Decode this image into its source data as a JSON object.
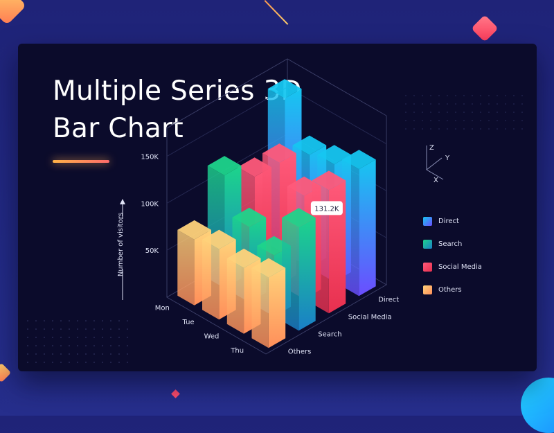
{
  "page": {
    "title_line1": "Multiple Series 3D",
    "title_line2": "Bar Chart"
  },
  "chart_data": {
    "type": "bar",
    "title": "Multiple Series 3D Bar Chart",
    "ylabel": "Number of visitors",
    "ylim": [
      0,
      150000
    ],
    "y_ticks": [
      "50K",
      "100K",
      "150K"
    ],
    "categories": [
      "Mon",
      "Tue",
      "Wed",
      "Thu"
    ],
    "series": [
      {
        "name": "Others",
        "values": [
          70000,
          75000,
          70000,
          75000
        ],
        "color_top": "#ffd27a",
        "color_bottom": "#ff8f5a"
      },
      {
        "name": "Search",
        "values": [
          120000,
          80000,
          65000,
          110000
        ],
        "color_top": "#1dd48b",
        "color_bottom": "#1a7fc7"
      },
      {
        "name": "Social Media",
        "values": [
          100000,
          130000,
          110000,
          131200
        ],
        "color_top": "#ff5a7a",
        "color_bottom": "#e8304f"
      },
      {
        "name": "Direct",
        "values": [
          165000,
          120000,
          125000,
          135000
        ],
        "color_top": "#16c6f0",
        "color_bottom": "#6b4dff"
      }
    ],
    "depth_labels": [
      "Others",
      "Search",
      "Social Media",
      "Direct"
    ],
    "tooltip": {
      "text": "131.2K",
      "series": "Social Media",
      "category": "Thu"
    },
    "axis_indicator": {
      "x": "X",
      "y": "Y",
      "z": "Z"
    },
    "legend": [
      {
        "name": "Direct",
        "color": "#3aa0ff"
      },
      {
        "name": "Search",
        "color": "#1ec8a0"
      },
      {
        "name": "Social Media",
        "color": "#ff4d6d"
      },
      {
        "name": "Others",
        "color": "#ffb25c"
      }
    ],
    "grid": true,
    "legend_position": "right"
  }
}
